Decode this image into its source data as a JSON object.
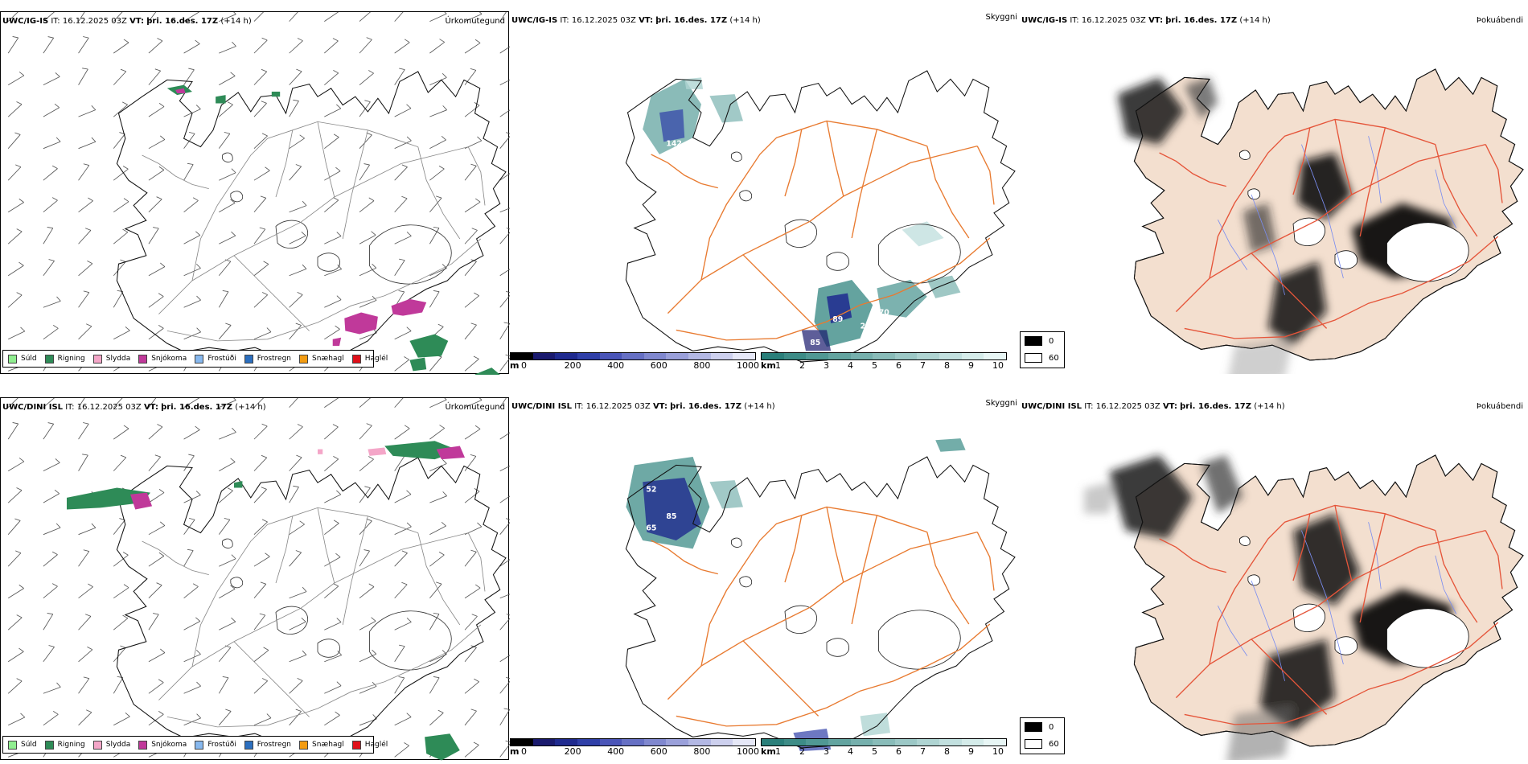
{
  "rows": [
    {
      "model": "UWC/IG-IS",
      "it_label": "IT:",
      "it_value": "16.12.2025 03Z",
      "vt_label": "VT:",
      "vt_value": "þri. 16.des. 17Z",
      "lead": "(+14 h)"
    },
    {
      "model": "UWC/DINI ISL",
      "it_label": "IT:",
      "it_value": "16.12.2025 03Z",
      "vt_label": "VT:",
      "vt_value": "þri. 16.des. 17Z",
      "lead": "(+14 h)"
    }
  ],
  "panel_titles": {
    "precip": "Úrkomutegund",
    "visibility": "Skyggni",
    "fog": "Þokuábendi"
  },
  "precip_legend": [
    {
      "label": "Súld",
      "color": "#90ee90"
    },
    {
      "label": "Rigning",
      "color": "#2e8b57"
    },
    {
      "label": "Slydda",
      "color": "#f4a6c8"
    },
    {
      "label": "Snjókoma",
      "color": "#c0399a"
    },
    {
      "label": "Frostúði",
      "color": "#87b8ee"
    },
    {
      "label": "Frostregn",
      "color": "#2c6fbf"
    },
    {
      "label": "Snæhagl",
      "color": "#f39c12"
    },
    {
      "label": "Haglél",
      "color": "#e0101a"
    }
  ],
  "visibility_scale_m": {
    "unit": "m",
    "ticks": [
      "0",
      "200",
      "400",
      "600",
      "800",
      "1000"
    ],
    "colors": [
      "#000000",
      "#1a1a6e",
      "#1f2a8f",
      "#2f3fa8",
      "#4a55b8",
      "#6670c4",
      "#8088cf",
      "#9aa0da",
      "#b3b8e4",
      "#cdd0ee",
      "#e6e8f7"
    ]
  },
  "visibility_scale_km": {
    "unit": "km",
    "ticks": [
      "1",
      "2",
      "3",
      "4",
      "5",
      "6",
      "7",
      "8",
      "9",
      "10"
    ],
    "colors": [
      "#2a7f7a",
      "#3d8c87",
      "#509894",
      "#63a4a0",
      "#76b0ad",
      "#89bcb9",
      "#9cc8c6",
      "#afd4d2",
      "#c2e0df",
      "#d5ecea",
      "#e8f6f5"
    ]
  },
  "fog_legend": [
    {
      "label": "0",
      "color": "#000000"
    },
    {
      "label": "60",
      "color": "#ffffff"
    }
  ],
  "visibility_labels_top": [
    "142",
    "89",
    "870",
    "252",
    "85"
  ],
  "visibility_labels_bottom": [
    "85",
    "52",
    "65"
  ],
  "colors": {
    "land_fog": "#f3dfcf",
    "road": "#e87a30",
    "river": "#7a8df0",
    "coast": "#111111",
    "fog_road": "#e5553a"
  }
}
